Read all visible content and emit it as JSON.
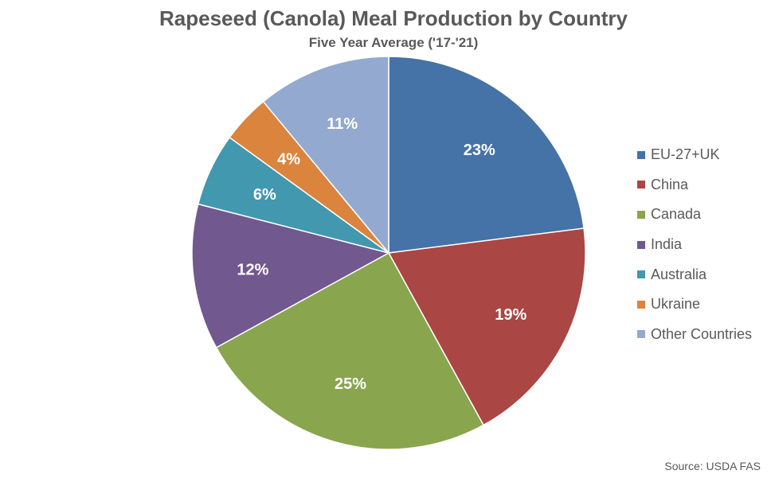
{
  "chart": {
    "title": "Rapeseed (Canola) Meal Production by Country",
    "subtitle": "Five Year Average ('17-'21)",
    "source": "Source: USDA FAS"
  },
  "chart_data": {
    "type": "pie",
    "title": "Rapeseed (Canola) Meal Production by Country",
    "subtitle": "Five Year Average ('17-'21)",
    "categories": [
      "EU-27+UK",
      "China",
      "Canada",
      "India",
      "Australia",
      "Ukraine",
      "Other Countries"
    ],
    "values": [
      23,
      19,
      25,
      12,
      6,
      4,
      11
    ],
    "labels": [
      "23%",
      "19%",
      "25%",
      "12%",
      "6%",
      "4%",
      "11%"
    ],
    "colors": [
      "#4572A7",
      "#AA4643",
      "#89A54E",
      "#71588F",
      "#4198AF",
      "#DB843D",
      "#93A9CF"
    ],
    "legend": "right",
    "start": "12 o'clock",
    "direction": "clockwise",
    "source": "Source: USDA FAS"
  }
}
